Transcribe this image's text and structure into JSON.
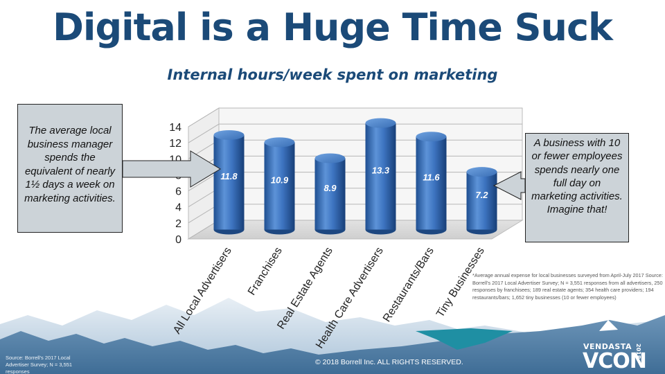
{
  "slide": {
    "title": "Digital is a Huge Time Suck",
    "subtitle": "Internal hours/week spent on marketing",
    "callout_left": "The average local business manager spends the equivalent of nearly 1½ days a week on marketing activities.",
    "callout_right": "A business with 10 or fewer employees spends nearly one full day on marketing activities. Imagine that!",
    "footnote": "*Average annual expense for local businesses surveyed from April-July 2017 Source: Borrell's 2017 Local Advertiser Survey; N = 3,551 responses from all advertisers, 250 responses by franchisees; 189 real estate agents; 354 health care providers; 194 restaurants/bars; 1,652 tiny businesses (10 or fewer employees)",
    "copyright": "© 2018 Borrell Inc.  ALL RIGHTS RESERVED.",
    "source_small": "Source:  Borrell's 2017 Local Advertiser Survey; N = 3,551 responses",
    "logo_brand": "VENDASTA",
    "logo_con": "VCON",
    "logo_year": "2018"
  },
  "colors": {
    "title": "#1b4a78",
    "bar": "#3d74c0",
    "mountain_dark": "#4f7da4",
    "mountain_light": "#a9c2d8",
    "teal": "#1f8fa3"
  },
  "chart_data": {
    "type": "bar",
    "categories": [
      "All Local Advertisers",
      "Franchises",
      "Real Estate Agents",
      "Health Care Advertisers",
      "Restaurants/Bars",
      "Tiny Businesses"
    ],
    "values": [
      11.8,
      10.9,
      8.9,
      13.3,
      11.6,
      7.2
    ],
    "value_labels": [
      "11.8",
      "10.9",
      "8.9",
      "13.3",
      "11.6",
      "7.2"
    ],
    "ylim": [
      0,
      14
    ],
    "yticks": [
      0,
      2,
      4,
      6,
      8,
      10,
      12,
      14
    ],
    "grid": true,
    "style": "3d-cylinder"
  }
}
